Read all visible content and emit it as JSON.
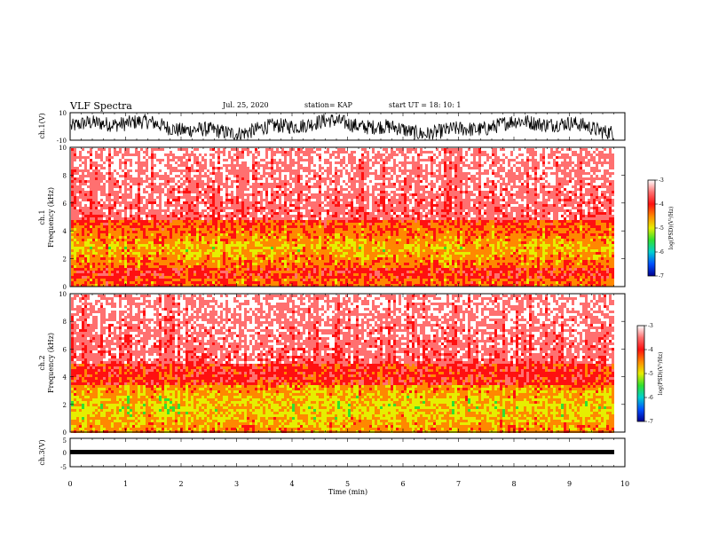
{
  "header": {
    "title": "VLF Spectra",
    "date": "Jul. 25, 2020",
    "station": "station= KAP",
    "start": "start UT =  18: 10: 1"
  },
  "colors": {
    "colormap": [
      "#000090",
      "#0050ff",
      "#00d0d0",
      "#30e030",
      "#e6ee00",
      "#ff8800",
      "#ff1010",
      "#ff7070",
      "#ffffff"
    ],
    "trace": "#000000",
    "axes": "#000000"
  },
  "chart_data": [
    {
      "type": "line",
      "panel": "ch1-waveform",
      "ylabel": "ch.1(V)",
      "ylim": [
        -10,
        10
      ],
      "yticks": [
        "10",
        "-10"
      ],
      "xlim": [
        0,
        10
      ],
      "description_of_series": "noisy voltage trace spanning about -10 to +10 V"
    },
    {
      "type": "heatmap",
      "panel": "ch1-spectrogram",
      "ylabel": "ch.1 Frequency (kHz)",
      "ylim": [
        0,
        10
      ],
      "yticks": [
        "0",
        "2",
        "4",
        "6",
        "8",
        "10"
      ],
      "xlim": [
        0,
        10
      ],
      "data_end_min": 9.8,
      "colorbar": {
        "label": "log(PSD)(V²/Hz)",
        "range": [
          -7,
          -3
        ],
        "ticks": [
          "-3",
          "-4",
          "-5",
          "-6",
          "-7"
        ]
      }
    },
    {
      "type": "heatmap",
      "panel": "ch2-spectrogram",
      "ylabel": "ch.2 Frequency (kHz)",
      "ylim": [
        0,
        10
      ],
      "yticks": [
        "0",
        "2",
        "4",
        "6",
        "8",
        "10"
      ],
      "xlim": [
        0,
        10
      ],
      "data_end_min": 9.8,
      "colorbar": {
        "label": "log(PSD)(V²/Hz)",
        "range": [
          -7,
          -3
        ],
        "ticks": [
          "-3",
          "-4",
          "-5",
          "-6",
          "-7"
        ]
      }
    },
    {
      "type": "line",
      "panel": "ch3-waveform",
      "ylabel": "ch.3(V)",
      "ylim": [
        -5,
        5
      ],
      "yticks": [
        "5",
        "0",
        "-5"
      ],
      "xlim": [
        0,
        10
      ],
      "xlabel": "Time (min)",
      "xticks": [
        "0",
        "1",
        "2",
        "3",
        "4",
        "5",
        "6",
        "7",
        "8",
        "9",
        "10"
      ],
      "description_of_series": "dense trace filling a narrow band near -1 V"
    }
  ]
}
